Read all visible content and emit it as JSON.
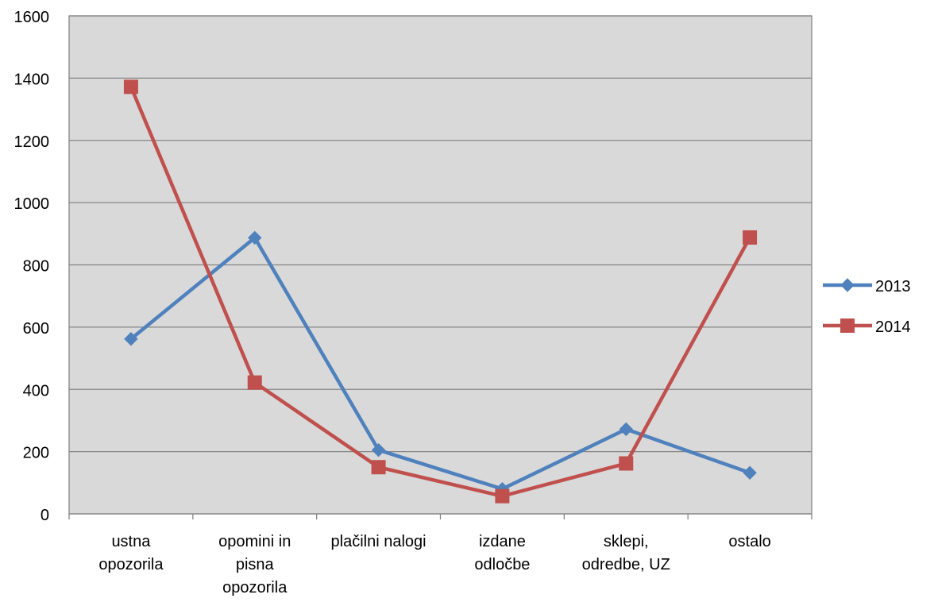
{
  "chart_data": {
    "type": "line",
    "title": "",
    "xlabel": "",
    "ylabel": "",
    "ylim": [
      0,
      1600
    ],
    "yticks": [
      0,
      200,
      400,
      600,
      800,
      1000,
      1200,
      1400,
      1600
    ],
    "ytick_labels": [
      "0",
      "200",
      "400",
      "600",
      "800",
      "1000",
      "1200",
      "1400",
      "1600"
    ],
    "grid": true,
    "legend_position": "right",
    "plot_background": "#d9d9d9",
    "categories": [
      [
        "ustna",
        "opozorila"
      ],
      [
        "opomini in",
        "pisna",
        "opozorila"
      ],
      [
        "plačilni nalogi"
      ],
      [
        "izdane",
        "odločbe"
      ],
      [
        "sklepi,",
        "odredbe, UZ"
      ],
      [
        "ostalo"
      ]
    ],
    "series": [
      {
        "name": "2013",
        "color": "#4f81bd",
        "marker": "diamond",
        "values": [
          562,
          887,
          205,
          80,
          272,
          132
        ]
      },
      {
        "name": "2014",
        "color": "#c0504d",
        "marker": "square",
        "values": [
          1372,
          422,
          150,
          57,
          162,
          888
        ]
      }
    ]
  }
}
